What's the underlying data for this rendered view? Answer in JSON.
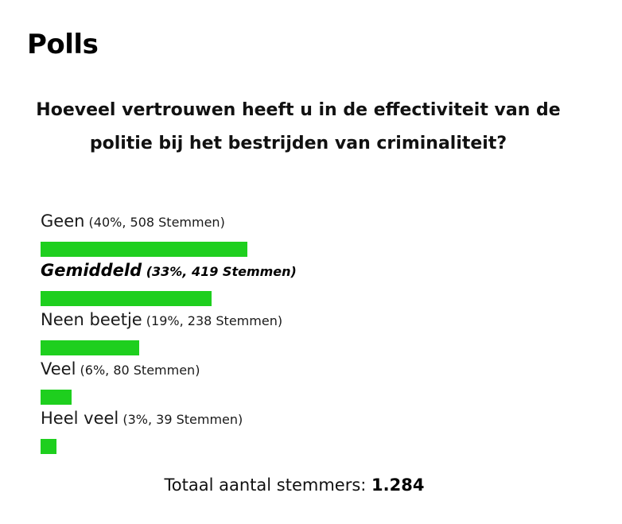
{
  "widget": {
    "title": "Polls"
  },
  "colors": {
    "bar": "#1ecf1e"
  },
  "chart_data": {
    "type": "bar",
    "title": "Hoeveel vertrouwen heeft u in de effectiviteit van de politie bij het bestrijden van criminaliteit?",
    "categories": [
      "Geen",
      "Gemiddeld",
      "Neen beetje",
      "Veel",
      "Heel veel"
    ],
    "values": [
      40,
      33,
      19,
      6,
      3
    ],
    "votes": [
      508,
      419,
      238,
      80,
      39
    ],
    "stats_labels": [
      "(40%, 508 Stemmen)",
      "(33%, 419 Stemmen)",
      "(19%, 238 Stemmen)",
      "(6%, 80 Stemmen)",
      "(3%, 39 Stemmen)"
    ],
    "selected": "Gemiddeld",
    "xlim": [
      0,
      100
    ]
  },
  "poll": {
    "total_label": "Totaal aantal stemmers:",
    "total_value": "1.284"
  }
}
